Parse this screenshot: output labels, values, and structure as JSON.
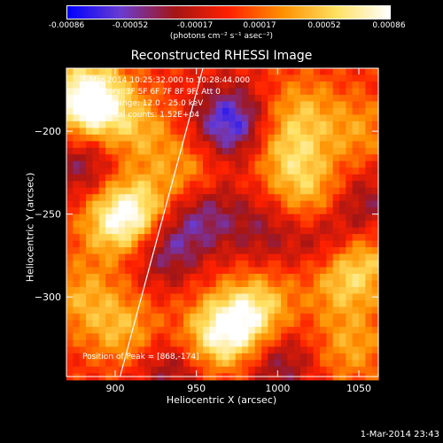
{
  "colorbar": {
    "ticks": [
      "-0.00086",
      "-0.00052",
      "-0.00017",
      "0.00017",
      "0.00052",
      "0.00086"
    ],
    "unit_label": "(photons cm⁻² s⁻¹ asec⁻²)"
  },
  "annotations": {
    "time_range": "1-Mar-2014 10:25:32.000 to 10:28:44.000",
    "detectors": "Detectors: 3F 5F 6F 7F 8F 9F, Att 0",
    "energy": "Energy Range: 12.0 - 25.0 keV",
    "clean": "Clean     Total counts: 1.52E+04",
    "peak": "Position of Peak = [868,-174]"
  },
  "footer": "1-Mar-2014 23:43",
  "chart_data": {
    "type": "heatmap",
    "title": "Reconstructed RHESSI Image",
    "xlabel": "Heliocentric X (arcsec)",
    "ylabel": "Heliocentric Y (arcsec)",
    "xlim": [
      870,
      1062
    ],
    "ylim": [
      -348,
      -162
    ],
    "xticks": [
      900,
      950,
      1000,
      1050
    ],
    "yticks": [
      -200,
      -250,
      -300
    ],
    "colorbar_range": [
      -0.00086,
      0.00086
    ],
    "colormap": [
      "#0000ff",
      "#6a3cd0",
      "#a31515",
      "#ff2000",
      "#ff9000",
      "#ffe060",
      "#ffffff"
    ],
    "limb_line_color": "#ffffff",
    "limb_line": {
      "x": [
        903,
        954
      ],
      "y": [
        -348,
        -162
      ]
    },
    "blobs": [
      {
        "x": 888,
        "y": -185,
        "v": 0.00045
      },
      {
        "x": 882,
        "y": -180,
        "v": 0.0007
      },
      {
        "x": 915,
        "y": -200,
        "v": 0.00035
      },
      {
        "x": 912,
        "y": -250,
        "v": 0.0007
      },
      {
        "x": 898,
        "y": -255,
        "v": 0.0004
      },
      {
        "x": 945,
        "y": -225,
        "v": 0.00035
      },
      {
        "x": 1008,
        "y": -215,
        "v": 0.00045
      },
      {
        "x": 1015,
        "y": -188,
        "v": 0.00035
      },
      {
        "x": 1020,
        "y": -240,
        "v": 0.0004
      },
      {
        "x": 1050,
        "y": -200,
        "v": 0.0003
      },
      {
        "x": 990,
        "y": -305,
        "v": 0.0004
      },
      {
        "x": 1040,
        "y": -290,
        "v": 0.00045
      },
      {
        "x": 1055,
        "y": -275,
        "v": 0.00035
      },
      {
        "x": 905,
        "y": -320,
        "v": 0.0004
      },
      {
        "x": 960,
        "y": -325,
        "v": 0.00045
      },
      {
        "x": 975,
        "y": -318,
        "v": 0.0006
      },
      {
        "x": 1045,
        "y": -330,
        "v": 0.00035
      },
      {
        "x": 880,
        "y": -300,
        "v": 0.00035
      },
      {
        "x": 955,
        "y": -250,
        "v": -0.00045
      },
      {
        "x": 970,
        "y": -195,
        "v": -0.0007
      },
      {
        "x": 930,
        "y": -270,
        "v": -0.0005
      },
      {
        "x": 880,
        "y": -220,
        "v": -0.0004
      },
      {
        "x": 1030,
        "y": -265,
        "v": -0.00035
      },
      {
        "x": 1000,
        "y": -340,
        "v": -0.0004
      },
      {
        "x": 935,
        "y": -345,
        "v": -0.00035
      },
      {
        "x": 1055,
        "y": -245,
        "v": -0.00035
      },
      {
        "x": 992,
        "y": -260,
        "v": -0.0003
      }
    ]
  }
}
